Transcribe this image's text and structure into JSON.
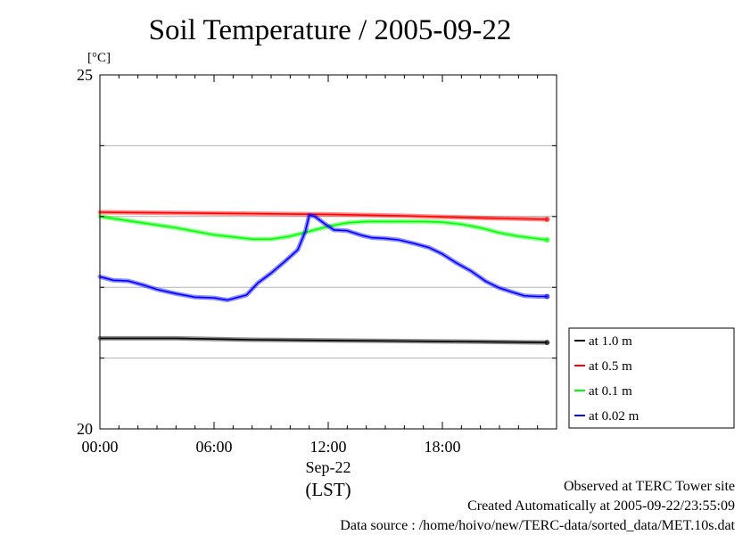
{
  "chart_data": {
    "type": "line",
    "title": "Soil Temperature / 2005-09-22",
    "ylabel": "[°C]",
    "ylim": [
      20,
      25
    ],
    "yticks": [
      20,
      21,
      22,
      23,
      24,
      25
    ],
    "ytick_labels": {
      "20": "20",
      "25": "25"
    },
    "xlim": [
      0,
      24
    ],
    "xticks": [
      0,
      6,
      12,
      18
    ],
    "xtick_labels": [
      "00:00",
      "06:00",
      "12:00",
      "18:00"
    ],
    "x_date_label": "Sep-22",
    "x_unit_label": "(LST)",
    "legend_position": "right",
    "series": [
      {
        "name": "at 1.0 m",
        "color": "#000000",
        "x": [
          0,
          4,
          8,
          12,
          16,
          20,
          23.5
        ],
        "y": [
          21.28,
          21.28,
          21.26,
          21.25,
          21.24,
          21.23,
          21.22
        ]
      },
      {
        "name": "at 0.5 m",
        "color": "#ff0000",
        "x": [
          0,
          4,
          8,
          12,
          16,
          20,
          23.5
        ],
        "y": [
          23.06,
          23.05,
          23.04,
          23.03,
          23.01,
          22.98,
          22.96
        ]
      },
      {
        "name": "at 0.1 m",
        "color": "#00ff00",
        "x": [
          0,
          2,
          4,
          6,
          8,
          9,
          10,
          11,
          12,
          13,
          14,
          15,
          16,
          17,
          18,
          19,
          20,
          21,
          22,
          23.5
        ],
        "y": [
          23.0,
          22.92,
          22.84,
          22.74,
          22.68,
          22.68,
          22.72,
          22.79,
          22.86,
          22.91,
          22.93,
          22.93,
          22.93,
          22.93,
          22.92,
          22.89,
          22.84,
          22.77,
          22.72,
          22.67
        ]
      },
      {
        "name": "at 0.02 m",
        "color": "#0000ff",
        "x": [
          0,
          0.7,
          1.5,
          2.3,
          3,
          4,
          5,
          6,
          6.7,
          7,
          7.7,
          8.3,
          9,
          9.7,
          10.4,
          10.8,
          11.0,
          11.3,
          11.8,
          12.3,
          13.0,
          13.8,
          14.3,
          15.0,
          15.7,
          16.5,
          17.3,
          18.0,
          18.7,
          19.5,
          20.3,
          21.0,
          21.7,
          22.3,
          23.0,
          23.5
        ],
        "y": [
          22.15,
          22.1,
          22.09,
          22.03,
          21.97,
          21.91,
          21.86,
          21.85,
          21.82,
          21.84,
          21.89,
          22.06,
          22.2,
          22.36,
          22.53,
          22.79,
          23.02,
          23.0,
          22.9,
          22.81,
          22.8,
          22.73,
          22.7,
          22.69,
          22.67,
          22.62,
          22.56,
          22.47,
          22.35,
          22.23,
          22.08,
          21.99,
          21.93,
          21.88,
          21.87,
          21.87
        ]
      }
    ]
  },
  "footer": {
    "observed": "Observed at TERC Tower site",
    "created": "Created Automatically at 2005-09-22/23:55:09",
    "source": "Data source : /home/hoivo/new/TERC-data/sorted_data/MET.10s.dat"
  }
}
